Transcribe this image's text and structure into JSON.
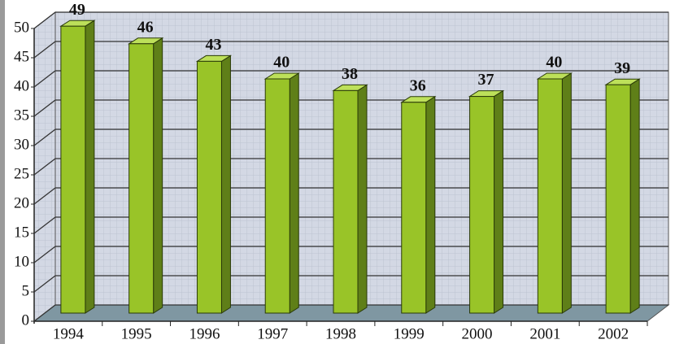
{
  "chart_data": {
    "type": "bar",
    "categories": [
      "1994",
      "1995",
      "1996",
      "1997",
      "1998",
      "1999",
      "2000",
      "2001",
      "2002"
    ],
    "values": [
      49,
      46,
      43,
      40,
      38,
      36,
      37,
      40,
      39
    ],
    "color": "#99c428",
    "ylim": [
      0,
      50
    ],
    "yticks": [
      0,
      5,
      10,
      15,
      20,
      25,
      30,
      35,
      40,
      45,
      50
    ],
    "grid": true
  }
}
